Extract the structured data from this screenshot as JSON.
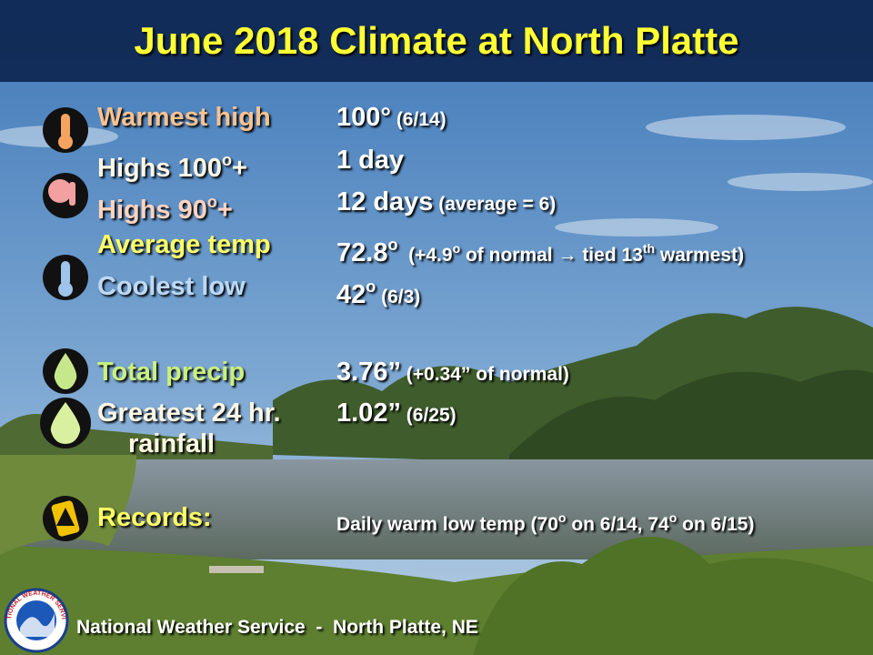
{
  "title": "June 2018 Climate at North Platte",
  "rows": [
    {
      "label_color": "#f8c291",
      "label": [
        {
          "text": "Warmest high"
        }
      ],
      "value": [
        {
          "text": "100°"
        },
        {
          "text": " (6/14)",
          "style": "small"
        }
      ]
    },
    {
      "label_color": "#fff6e4",
      "label": [
        {
          "text": "Highs 100"
        },
        {
          "text": "o",
          "style": "sup"
        },
        {
          "text": "+"
        }
      ],
      "value": [
        {
          "text": "1 day"
        }
      ]
    },
    {
      "label_color": "#ffd3c0",
      "label": [
        {
          "text": "Highs 90"
        },
        {
          "text": "o",
          "style": "sup"
        },
        {
          "text": "+"
        }
      ],
      "value": [
        {
          "text": "12 days"
        },
        {
          "text": " (average = 6)",
          "style": "small"
        }
      ]
    },
    {
      "label_color": "#ffff66",
      "label": [
        {
          "text": "Average temp"
        }
      ],
      "value": [
        {
          "text": "72.8"
        },
        {
          "text": "o",
          "style": "sup"
        },
        {
          "text": "  (+4.9",
          "style": "small"
        },
        {
          "text": "o",
          "style": "small-sup"
        },
        {
          "text": " of normal → tied 13",
          "style": "small"
        },
        {
          "text": "th",
          "style": "small-sup"
        },
        {
          "text": " warmest)",
          "style": "small"
        }
      ]
    },
    {
      "label_color": "#bcd9f5",
      "label": [
        {
          "text": "Coolest low"
        }
      ],
      "value": [
        {
          "text": "42"
        },
        {
          "text": "o",
          "style": "sup"
        },
        {
          "text": " (6/3)",
          "style": "small"
        }
      ]
    },
    {
      "label_color": "#c9f07e",
      "label": [
        {
          "text": "Total precip"
        }
      ],
      "value": [
        {
          "text": "3.76”"
        },
        {
          "text": " (+0.34” of normal)",
          "style": "small"
        }
      ]
    },
    {
      "label_color": "#fff6e4",
      "label": [
        {
          "text": "Greatest 24 hr."
        },
        {
          "text": "rainfall",
          "style": "newline"
        }
      ],
      "value": [
        {
          "text": "1.02”"
        },
        {
          "text": " (6/25)",
          "style": "small"
        }
      ]
    },
    {
      "label_color": "#ffff66",
      "label": [
        {
          "text": "Records:"
        }
      ],
      "value": [
        {
          "text": "Daily warm low temp (70",
          "style": "small"
        },
        {
          "text": "o",
          "style": "small-sup"
        },
        {
          "text": " on 6/14, 74",
          "style": "small"
        },
        {
          "text": "o",
          "style": "small-sup"
        },
        {
          "text": " on 6/15)",
          "style": "small"
        }
      ]
    }
  ],
  "footer": "National Weather Service  -  North Platte, NE",
  "logo_text": "NATIONAL WEATHER SERVICE"
}
